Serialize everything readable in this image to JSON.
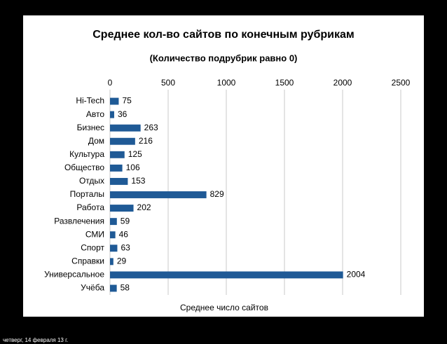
{
  "chart_data": {
    "type": "barh",
    "title": "Среднее кол-во сайтов по конечным рубрикам",
    "subtitle": "(Количество подрубрик равно 0)",
    "x_label": "Среднее число сайтов",
    "categories": [
      "Hi-Tech",
      "Авто",
      "Бизнес",
      "Дом",
      "Культура",
      "Общество",
      "Отдых",
      "Порталы",
      "Работа",
      "Развлечения",
      "СМИ",
      "Спорт",
      "Справки",
      "Универсальное",
      "Учёба"
    ],
    "values": [
      75,
      36,
      263,
      216,
      125,
      106,
      153,
      829,
      202,
      59,
      46,
      63,
      29,
      2004,
      58
    ],
    "color": "#1f5a96",
    "xlim": [
      0,
      2500
    ],
    "xticks": [
      0,
      500,
      1000,
      1500,
      2000,
      2500
    ],
    "grid": true
  },
  "footer": "четверг, 14 февраля 13 г."
}
